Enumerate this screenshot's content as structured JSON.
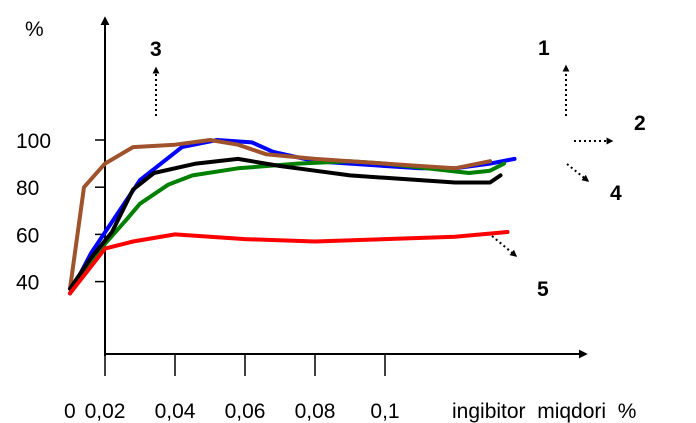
{
  "chart_data": {
    "type": "line",
    "title": "",
    "y_unit_label": "%",
    "x_axis_label": "ingibitor  miqdori  %",
    "x_origin_label": "0",
    "x_ticks": [
      "0,02",
      "0,04",
      "0,06",
      "0,08",
      "0,1"
    ],
    "y_ticks": [
      "40",
      "60",
      "80",
      "100"
    ],
    "grid": false,
    "series": [
      {
        "name": "1",
        "color": "#0000ff",
        "points": [
          [
            0.01,
            35
          ],
          [
            0.016,
            52
          ],
          [
            0.03,
            83
          ],
          [
            0.042,
            97
          ],
          [
            0.052,
            100
          ],
          [
            0.062,
            99
          ],
          [
            0.068,
            95
          ],
          [
            0.08,
            91
          ],
          [
            0.09,
            90
          ],
          [
            0.1,
            89
          ],
          [
            0.11,
            88
          ],
          [
            0.12,
            88
          ],
          [
            0.13,
            90
          ],
          [
            0.137,
            92
          ]
        ]
      },
      {
        "name": "2",
        "color": "#008000",
        "points": [
          [
            0.01,
            37
          ],
          [
            0.016,
            47
          ],
          [
            0.02,
            56
          ],
          [
            0.026,
            66
          ],
          [
            0.03,
            73
          ],
          [
            0.038,
            81
          ],
          [
            0.045,
            85
          ],
          [
            0.058,
            88
          ],
          [
            0.075,
            90
          ],
          [
            0.09,
            91
          ],
          [
            0.1,
            90
          ],
          [
            0.112,
            88
          ],
          [
            0.124,
            86
          ],
          [
            0.13,
            87
          ],
          [
            0.134,
            90
          ]
        ]
      },
      {
        "name": "3",
        "color": "#a0522d",
        "points": [
          [
            0.01,
            37
          ],
          [
            0.014,
            80
          ],
          [
            0.02,
            90
          ],
          [
            0.028,
            97
          ],
          [
            0.04,
            98
          ],
          [
            0.05,
            100
          ],
          [
            0.058,
            98
          ],
          [
            0.066,
            94
          ],
          [
            0.08,
            92
          ],
          [
            0.09,
            91
          ],
          [
            0.1,
            90
          ],
          [
            0.11,
            89
          ],
          [
            0.12,
            88
          ],
          [
            0.13,
            91
          ]
        ]
      },
      {
        "name": "4",
        "color": "#000000",
        "points": [
          [
            0.01,
            37
          ],
          [
            0.016,
            50
          ],
          [
            0.022,
            61
          ],
          [
            0.028,
            79
          ],
          [
            0.034,
            86
          ],
          [
            0.046,
            90
          ],
          [
            0.058,
            92
          ],
          [
            0.07,
            89
          ],
          [
            0.08,
            87
          ],
          [
            0.09,
            85
          ],
          [
            0.1,
            84
          ],
          [
            0.11,
            83
          ],
          [
            0.12,
            82
          ],
          [
            0.13,
            82
          ],
          [
            0.133,
            85
          ]
        ]
      },
      {
        "name": "5",
        "color": "#ff0000",
        "points": [
          [
            0.01,
            35
          ],
          [
            0.02,
            54
          ],
          [
            0.028,
            57
          ],
          [
            0.04,
            60
          ],
          [
            0.06,
            58
          ],
          [
            0.08,
            57
          ],
          [
            0.1,
            58
          ],
          [
            0.12,
            59
          ],
          [
            0.135,
            61
          ]
        ]
      }
    ]
  }
}
